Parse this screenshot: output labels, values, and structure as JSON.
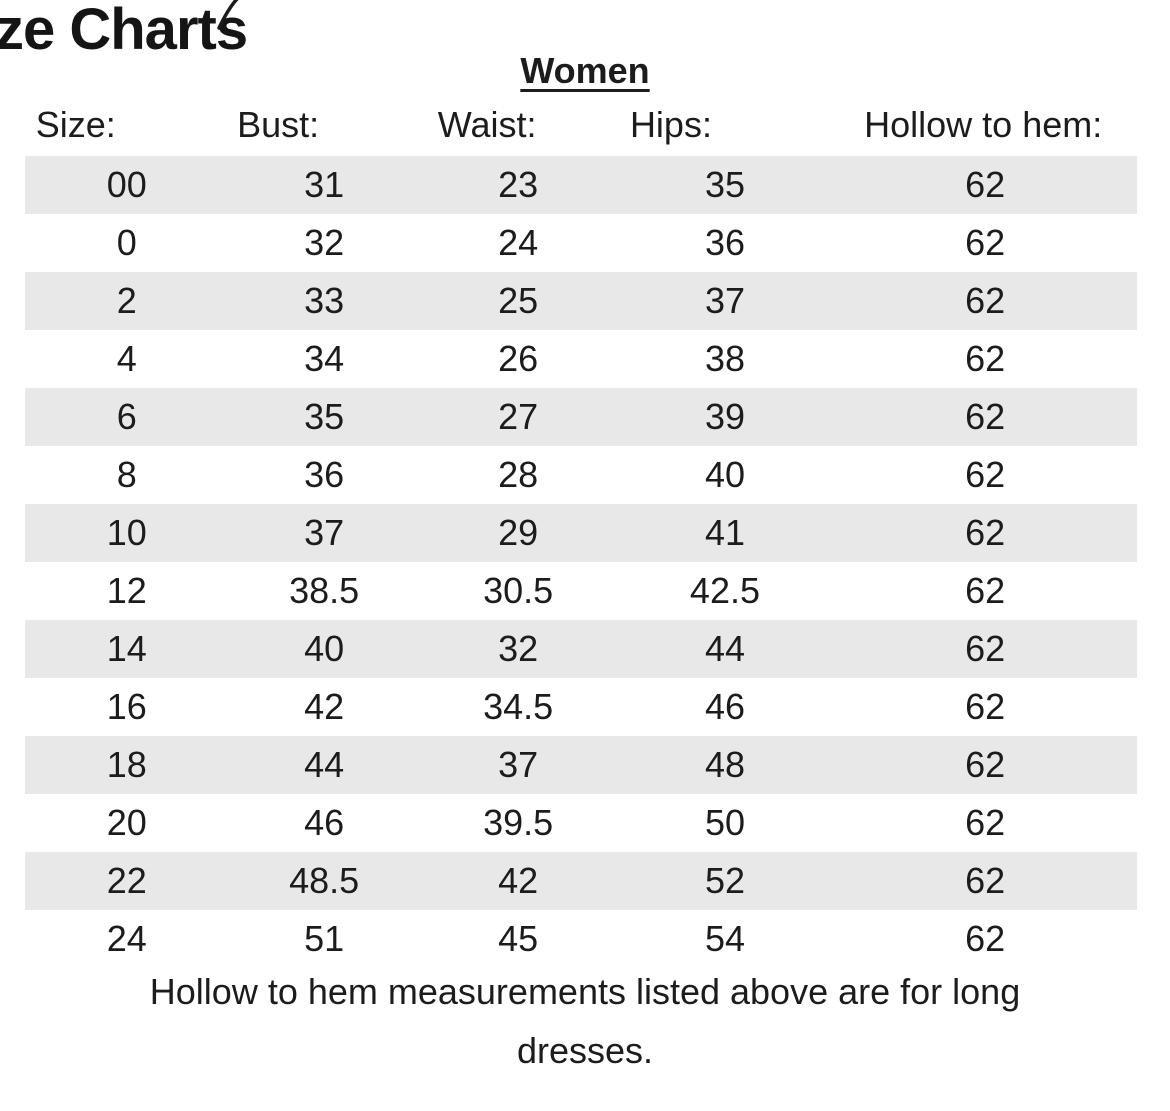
{
  "page": {
    "title": "ze Charts",
    "section_heading": "Women"
  },
  "table": {
    "headers": [
      "Size:",
      "Bust:",
      "Waist:",
      "Hips:",
      "Hollow to hem:"
    ],
    "rows": [
      [
        "00",
        "31",
        "23",
        "35",
        "62"
      ],
      [
        "0",
        "32",
        "24",
        "36",
        "62"
      ],
      [
        "2",
        "33",
        "25",
        "37",
        "62"
      ],
      [
        "4",
        "34",
        "26",
        "38",
        "62"
      ],
      [
        "6",
        "35",
        "27",
        "39",
        "62"
      ],
      [
        "8",
        "36",
        "28",
        "40",
        "62"
      ],
      [
        "10",
        "37",
        "29",
        "41",
        "62"
      ],
      [
        "12",
        "38.5",
        "30.5",
        "42.5",
        "62"
      ],
      [
        "14",
        "40",
        "32",
        "44",
        "62"
      ],
      [
        "16",
        "42",
        "34.5",
        "46",
        "62"
      ],
      [
        "18",
        "44",
        "37",
        "48",
        "62"
      ],
      [
        "20",
        "46",
        "39.5",
        "50",
        "62"
      ],
      [
        "22",
        "48.5",
        "42",
        "52",
        "62"
      ],
      [
        "24",
        "51",
        "45",
        "54",
        "62"
      ]
    ]
  },
  "footer": {
    "lines": [
      "Hollow to hem measurements listed above are for long",
      "dresses."
    ]
  },
  "colors": {
    "text": "#1c1c1c",
    "background": "#ffffff",
    "stripe": "#e8e8e8"
  }
}
